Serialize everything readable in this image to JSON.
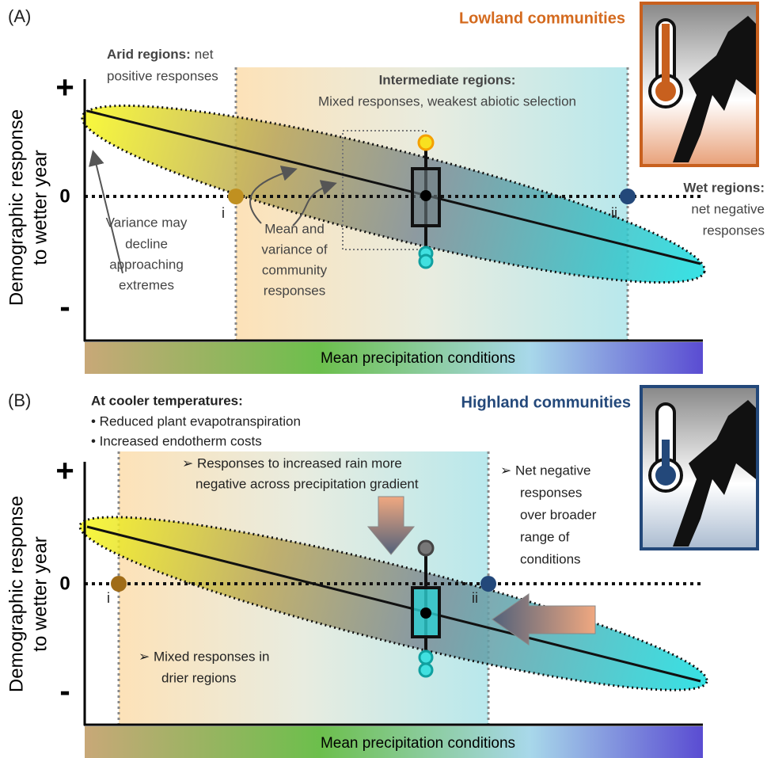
{
  "panels": [
    {
      "label": "(A)",
      "title": "Lowland communities",
      "y_axis_title": [
        "Demographic response",
        "to wetter year"
      ],
      "y_plus": "+",
      "y_zero": "0",
      "y_minus": "-",
      "x_axis_title": "Mean precipitation conditions",
      "point_labels": [
        "i",
        "ii"
      ],
      "annotations": {
        "arid": {
          "heading": "Arid regions:",
          "lines": [
            "net",
            "positive responses"
          ]
        },
        "intermediate": {
          "heading": "Intermediate regions:",
          "lines": [
            "Mixed responses, weakest abiotic selection"
          ]
        },
        "wet": {
          "heading": "Wet regions:",
          "lines": [
            "net negative",
            "responses"
          ]
        },
        "variance": {
          "lines": [
            "Variance may",
            "decline",
            "approaching",
            "extremes"
          ]
        },
        "mean": {
          "lines": [
            "Mean and",
            "variance of",
            "community",
            "responses"
          ]
        }
      }
    },
    {
      "label": "(B)",
      "title": "Highland communities",
      "y_axis_title": [
        "Demographic response",
        "to wetter year"
      ],
      "y_plus": "+",
      "y_zero": "0",
      "y_minus": "-",
      "x_axis_title": "Mean precipitation conditions",
      "point_labels": [
        "i",
        "ii"
      ],
      "annotations": {
        "cooler": {
          "heading": "At cooler temperatures:",
          "lines": [
            "• Reduced plant evapotranspiration",
            "• Increased endotherm costs"
          ]
        },
        "responses": {
          "lines": [
            "➢ Responses to increased rain more",
            "negative across precipitation gradient"
          ]
        },
        "net_negative": {
          "lines": [
            "➢  Net negative",
            "responses",
            "over broader",
            "range of",
            "conditions"
          ]
        },
        "mixed": {
          "lines": [
            "➢  Mixed responses in",
            "drier regions"
          ]
        }
      }
    }
  ]
}
